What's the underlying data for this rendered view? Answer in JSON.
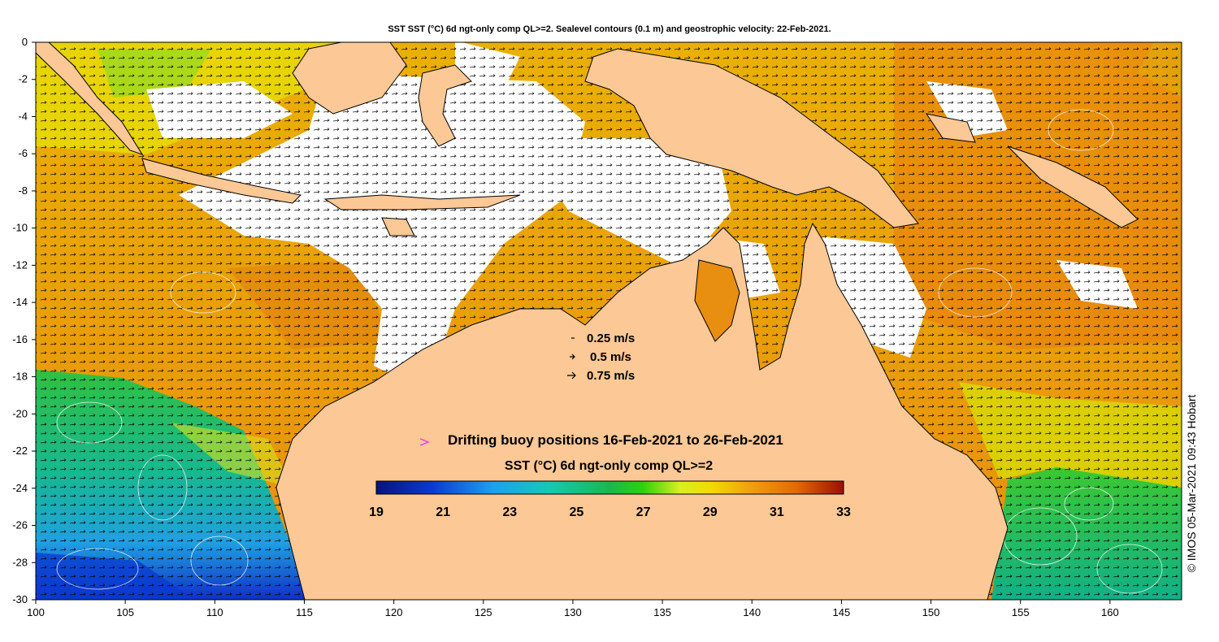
{
  "title": "SST SST (°C) 6d ngt-only comp QL>=2. Sealevel contours (0.1 m) and geostrophic velocity: 22-Feb-2021.",
  "credit": "© IMOS 05-Mar-2021 09:43 Hobart",
  "axes": {
    "x_ticks": [
      "100",
      "105",
      "110",
      "115",
      "120",
      "125",
      "130",
      "135",
      "140",
      "145",
      "150",
      "155",
      "160"
    ],
    "y_ticks": [
      "0",
      "-2",
      "-4",
      "-6",
      "-8",
      "-10",
      "-12",
      "-14",
      "-16",
      "-18",
      "-20",
      "-22",
      "-24",
      "-26",
      "-28",
      "-30"
    ],
    "lon_range": [
      100,
      164
    ],
    "lat_range": [
      -30,
      0
    ]
  },
  "velocity_legend": {
    "items": [
      {
        "label": "0.25 m/s",
        "speed": 0.25
      },
      {
        "label": "0.5 m/s",
        "speed": 0.5
      },
      {
        "label": "0.75 m/s",
        "speed": 0.75
      }
    ]
  },
  "buoy_legend": {
    "label": "Drifting buoy positions 16-Feb-2021 to 26-Feb-2021",
    "marker_color": "#e040e0"
  },
  "colorbar": {
    "title": "SST (°C) 6d ngt-only comp QL>=2",
    "ticks": [
      "19",
      "21",
      "23",
      "25",
      "27",
      "29",
      "31",
      "33"
    ],
    "range": [
      19,
      33
    ]
  },
  "colors": {
    "land": "#fcc895",
    "no_data": "#ffffff",
    "coastline": "#000000"
  }
}
